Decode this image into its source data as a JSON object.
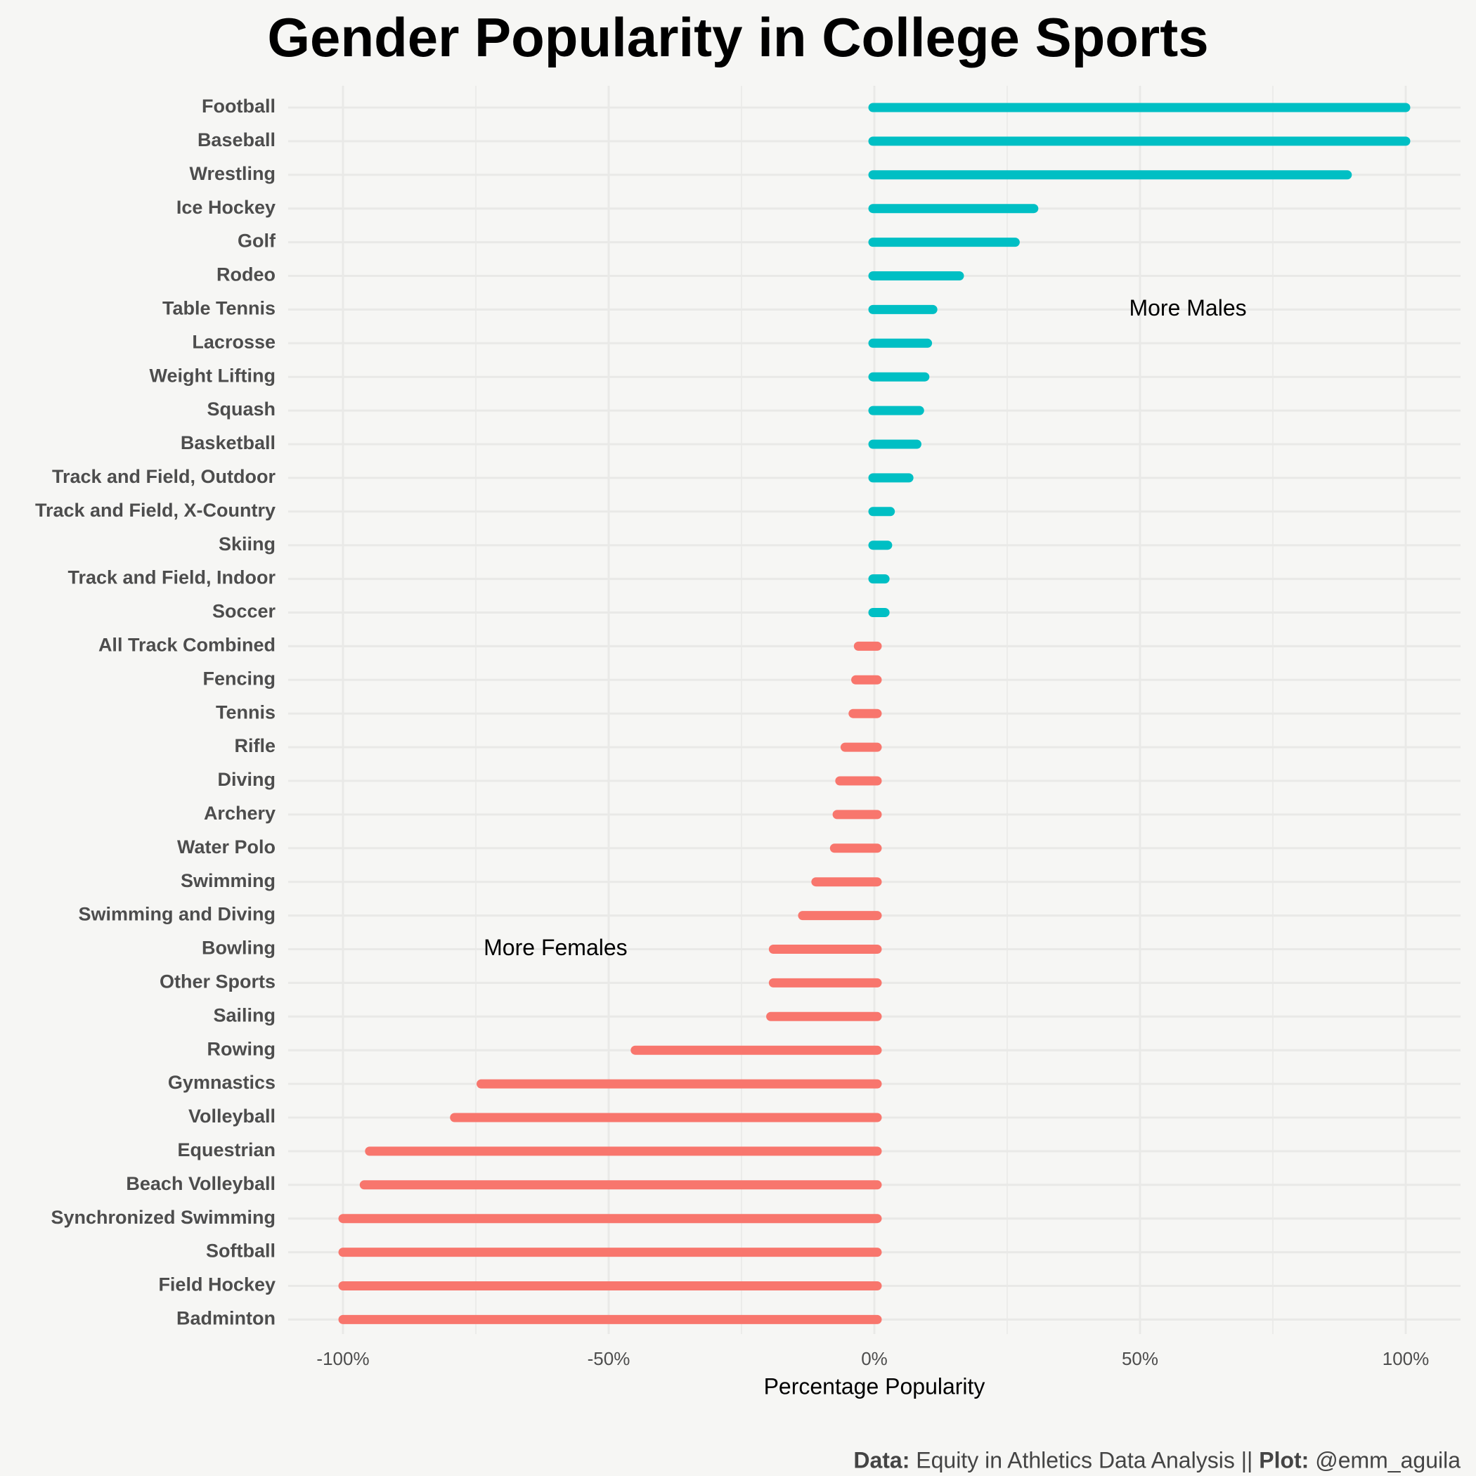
{
  "chart_data": {
    "type": "bar",
    "orientation": "horizontal",
    "title": "Gender Popularity in College Sports",
    "xlabel": "Percentage Popularity",
    "ylabel": "",
    "xlim": [
      -100,
      100
    ],
    "x_ticks": [
      -100,
      -50,
      0,
      50,
      100
    ],
    "x_tick_labels": [
      "-100%",
      "-50%",
      "0%",
      "50%",
      "100%"
    ],
    "grid": true,
    "annotations": [
      {
        "text": "More Males",
        "x": 59,
        "category": "Table Tennis"
      },
      {
        "text": "More Females",
        "x": -60,
        "category": "Bowling"
      }
    ],
    "colors": {
      "positive": "#00bfc4",
      "negative": "#f8766d",
      "grid": "#e9e9e7",
      "background": "#f6f6f4"
    },
    "categories": [
      "Football",
      "Baseball",
      "Wrestling",
      "Ice Hockey",
      "Golf",
      "Rodeo",
      "Table Tennis",
      "Lacrosse",
      "Weight Lifting",
      "Squash",
      "Basketball",
      "Track and Field, Outdoor",
      "Track and Field, X-Country",
      "Skiing",
      "Track and Field, Indoor",
      "Soccer",
      "All Track Combined",
      "Fencing",
      "Tennis",
      "Rifle",
      "Diving",
      "Archery",
      "Water Polo",
      "Swimming",
      "Swimming and Diving",
      "Bowling",
      "Other Sports",
      "Sailing",
      "Rowing",
      "Gymnastics",
      "Volleyball",
      "Equestrian",
      "Beach Volleyball",
      "Synchronized Swimming",
      "Softball",
      "Field Hockey",
      "Badminton"
    ],
    "values": [
      100,
      100,
      89,
      30,
      26.5,
      16,
      11,
      10,
      9.5,
      8.5,
      8,
      6.5,
      3,
      2.5,
      2,
      2,
      -3,
      -3.5,
      -4,
      -5.5,
      -6.5,
      -7,
      -7.5,
      -11,
      -13.5,
      -19,
      -19,
      -19.5,
      -45,
      -74,
      -79,
      -95,
      -96,
      -100,
      -100,
      -100,
      -100
    ]
  },
  "caption": {
    "data_label": "Data:",
    "data_source": " Equity in Athletics Data Analysis || ",
    "plot_label": "Plot:",
    "plot_author": " @emm_aguila"
  }
}
